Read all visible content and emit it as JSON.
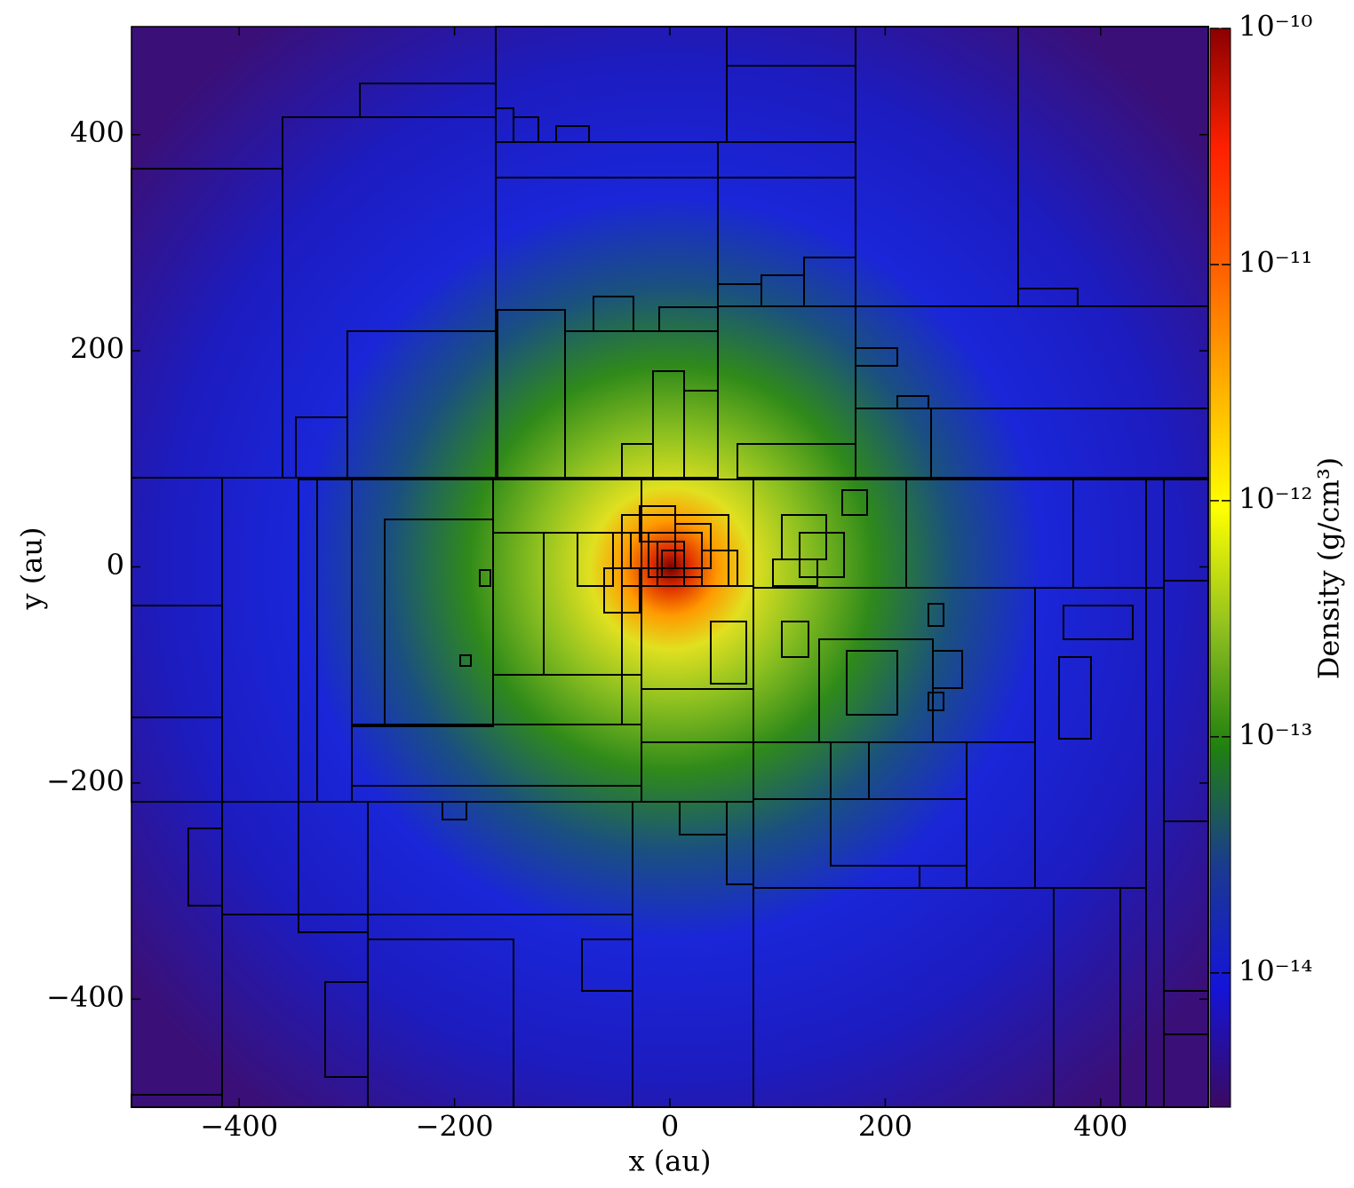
{
  "chart_data": {
    "type": "heatmap",
    "xlabel": "x  (au)",
    "ylabel": "y  (au)",
    "xlim": [
      -500,
      500
    ],
    "ylim": [
      -500,
      500
    ],
    "xticks": [
      {
        "value": -400,
        "label": "−400"
      },
      {
        "value": -200,
        "label": "−200"
      },
      0,
      200,
      400
    ],
    "yticks": [
      {
        "value": -400,
        "label": "−400"
      },
      {
        "value": -200,
        "label": "−200"
      },
      0,
      200,
      400
    ],
    "colorbar": {
      "label": "Density  (g/cm³)",
      "log_scale": true,
      "zlim": [
        2.7e-15,
        1e-10
      ],
      "ticks": [
        {
          "value": 1e-14,
          "label": "10⁻¹⁴"
        },
        {
          "value": 1e-13,
          "label": "10⁻¹³"
        },
        {
          "value": 1e-12,
          "label": "10⁻¹²"
        },
        {
          "value": 1e-11,
          "label": "10⁻¹¹"
        },
        {
          "value": 1e-10,
          "label": "10⁻¹⁰"
        }
      ],
      "colormap": [
        "#3a0a60",
        "#1414d8",
        "#1a3a90",
        "#208010",
        "#90c020",
        "#ffff00",
        "#ffb000",
        "#ff6000",
        "#ff2000",
        "#8b0000"
      ]
    }
  }
}
